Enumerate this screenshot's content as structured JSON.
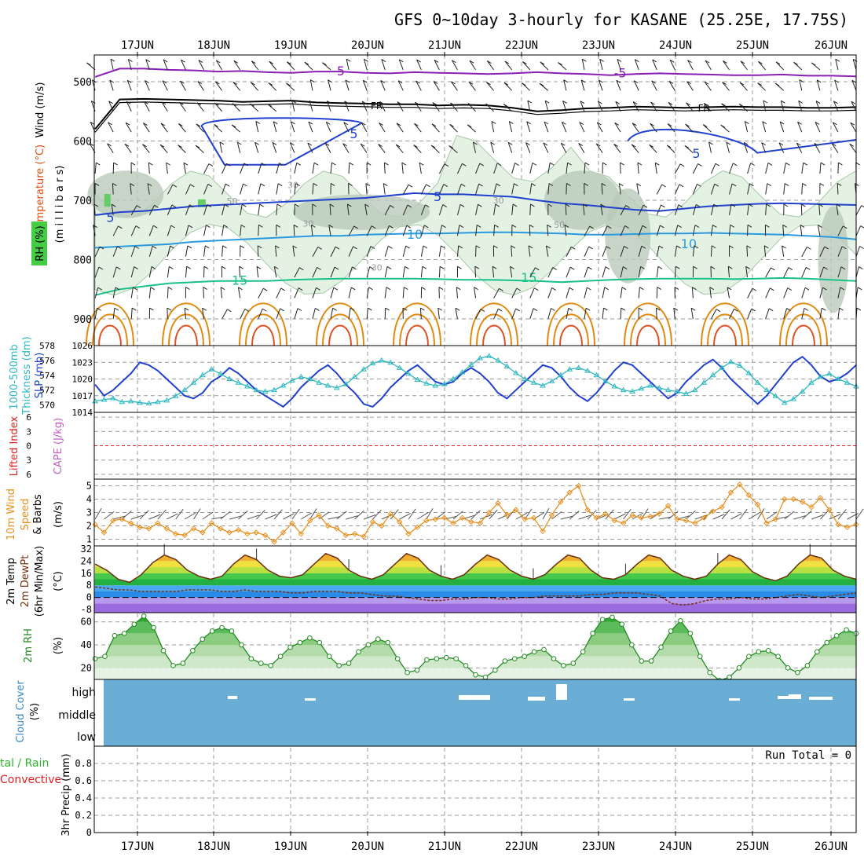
{
  "title": "GFS 0~10day 3-hourly for KASANE (25.25E, 17.75S)",
  "dates": [
    "17JUN",
    "18JUN",
    "19JUN",
    "20JUN",
    "21JUN",
    "22JUN",
    "23JUN",
    "24JUN",
    "25JUN",
    "26JUN"
  ],
  "colors": {
    "grid": "#9a9a9a",
    "rh_fill": "#e4f2e4",
    "rh_dark": "#b9c9b9",
    "temp_purple": "#8a1fb5",
    "temp_blue": "#2040d0",
    "temp_cyan": "#2a9ae0",
    "temp_green": "#18c08a",
    "temp_orange": "#e08a10",
    "fr_black": "#000000",
    "slp": "#2040d0",
    "thick": "#2fb8c0",
    "lifted": "#e02020",
    "cape": "#c060c0",
    "wind10": "#e89020",
    "dewpt": "#7a3010",
    "rh2m": "#228b22",
    "cloud": "#6aaed6"
  },
  "chart_data": [
    {
      "type": "line",
      "title": "Wind (m/s)  Temperature (°C)  RH (%)",
      "ylabel": "(millibars)",
      "yticks": [
        500,
        600,
        700,
        800,
        900
      ],
      "contour_labels": [
        "-5",
        "-5",
        "FR",
        "FR",
        "5",
        "5",
        "5",
        "5",
        "10",
        "10",
        "15",
        "15",
        "30",
        "30",
        "30",
        "30",
        "50",
        "50"
      ],
      "series": [
        {
          "name": "-5",
          "color": "purple",
          "values": [
            492,
            478,
            478,
            480,
            481,
            483,
            482,
            484,
            485,
            483,
            483,
            485,
            486,
            484,
            485,
            486,
            487,
            486,
            484,
            486,
            487,
            489,
            487,
            486,
            487,
            488,
            489,
            489,
            488,
            490,
            490,
            491
          ]
        },
        {
          "name": "FR",
          "color": "black",
          "values": [
            580,
            530,
            529,
            530,
            531,
            532,
            534,
            533,
            532,
            535,
            536,
            537,
            538,
            538,
            540,
            539,
            540,
            544,
            550,
            548,
            545,
            544,
            542,
            543,
            544,
            543,
            542,
            543,
            543,
            544,
            544,
            543
          ]
        },
        {
          "name": "5",
          "color": "blue",
          "values": [
            725,
            720,
            718,
            714,
            710,
            708,
            706,
            704,
            702,
            700,
            698,
            696,
            692,
            688,
            690,
            690,
            692,
            694,
            700,
            705,
            708,
            712,
            716,
            718,
            714,
            710,
            708,
            706,
            705,
            706,
            707,
            708
          ]
        },
        {
          "name": "10",
          "color": "cyan",
          "values": [
            780,
            778,
            776,
            774,
            770,
            768,
            766,
            764,
            762,
            760,
            760,
            758,
            757,
            756,
            756,
            755,
            754,
            754,
            755,
            756,
            758,
            758,
            757,
            756,
            756,
            755,
            756,
            757,
            758,
            760,
            762,
            766
          ]
        },
        {
          "name": "15",
          "color": "green",
          "values": [
            860,
            850,
            845,
            840,
            838,
            836,
            836,
            836,
            834,
            833,
            832,
            832,
            832,
            832,
            833,
            834,
            834,
            835,
            836,
            838,
            836,
            834,
            833,
            832,
            832,
            832,
            833,
            832,
            831,
            832,
            834,
            836
          ]
        }
      ]
    },
    {
      "type": "line",
      "ylabel": "SLP (mb) / 1000-500mb Thickness (dm)",
      "ylim_slp": [
        1014,
        1026
      ],
      "ylim_thick": [
        569,
        578
      ],
      "yticks_left": [
        578,
        576,
        574,
        572,
        570
      ],
      "yticks_right": [
        1026,
        1023,
        1020,
        1017,
        1014
      ],
      "series": [
        {
          "name": "SLP (mb)",
          "values": [
            1019,
            1017,
            1018,
            1019.5,
            1021,
            1023,
            1022.5,
            1021.5,
            1020,
            1018.5,
            1017,
            1016.5,
            1017.5,
            1019.5,
            1020.5,
            1022,
            1021,
            1019.5,
            1018,
            1017,
            1016,
            1015,
            1016.5,
            1018.5,
            1020,
            1021.5,
            1022.5,
            1021,
            1019,
            1017.5,
            1015.5,
            1015,
            1016.5,
            1018.5,
            1020,
            1021.5,
            1022.5,
            1021,
            1019.5,
            1019,
            1019.5,
            1021,
            1022,
            1021,
            1019.5,
            1017.5,
            1016.5,
            1018,
            1019.5,
            1021,
            1022.5,
            1022,
            1020.5,
            1018.5,
            1017,
            1016,
            1017.5,
            1019.5,
            1021.5,
            1023,
            1022.5,
            1021,
            1019.5,
            1018,
            1016.5,
            1017.5,
            1019.5,
            1021,
            1022.5,
            1023.5,
            1022,
            1020,
            1018.5,
            1017,
            1015.5,
            1017,
            1019,
            1021,
            1023,
            1024,
            1022.5,
            1020.5,
            1019.5,
            1020,
            1021,
            1022.5
          ]
        },
        {
          "name": "Thickness (dm)",
          "values": [
            570.5,
            570.7,
            570.9,
            570.4,
            570.5,
            570.3,
            570.2,
            570.4,
            570.6,
            571.2,
            572,
            573,
            574,
            574.8,
            574.2,
            573.5,
            573,
            572.5,
            572,
            571.8,
            572,
            572.6,
            573.3,
            573.8,
            573.5,
            573,
            572.6,
            572.3,
            572.8,
            573.8,
            574.8,
            575.6,
            576,
            575.7,
            575,
            574.2,
            573.4,
            572.9,
            572.6,
            572.8,
            573.5,
            574.4,
            575.4,
            576.3,
            576.6,
            576,
            575.2,
            574.3,
            573.5,
            573,
            572.6,
            573.2,
            574,
            574.8,
            575,
            574.6,
            574,
            573.2,
            572.5,
            572,
            571.8,
            572.2,
            572.6,
            572.3,
            572,
            571.8,
            571.5,
            572,
            573,
            574,
            575,
            575.8,
            575.3,
            574.3,
            573,
            572,
            571.2,
            570.3,
            570.8,
            571.8,
            573,
            573.8,
            574.2,
            573.5,
            573,
            572.5
          ]
        }
      ]
    },
    {
      "type": "line",
      "ylabel": "Lifted Index / CAPE (J/kg)",
      "yticks": [
        6,
        3,
        0,
        -3,
        -6
      ],
      "yticks_label": [
        "6",
        "3",
        "0",
        "3",
        "6"
      ],
      "series": [
        {
          "name": "Lifted Index",
          "values": [
            0
          ]
        }
      ]
    },
    {
      "type": "line",
      "ylabel": "10m Wind Speed & Barbs (m/s)",
      "ylim": [
        0.5,
        5.5
      ],
      "yticks": [
        5,
        4,
        3,
        2,
        1
      ],
      "series": [
        {
          "name": "Speed",
          "values": [
            2.1,
            1.5,
            2.4,
            2.5,
            2.2,
            1.9,
            1.8,
            2.2,
            1.8,
            1.4,
            1.3,
            1.8,
            1.5,
            2.2,
            1.8,
            1.5,
            1.7,
            1.4,
            1.5,
            1.3,
            0.8,
            1.5,
            2.2,
            1.4,
            2.4,
            2.8,
            2.0,
            1.8,
            1.3,
            1.4,
            1.2,
            2.3,
            2.0,
            2.9,
            2.3,
            1.4,
            1.9,
            2.4,
            2.5,
            2.6,
            2.2,
            2.6,
            2.3,
            2.2,
            3.0,
            3.7,
            2.8,
            3.2,
            2.5,
            2.6,
            1.6,
            2.8,
            3.8,
            4.5,
            5.0,
            3.2,
            2.6,
            2.9,
            2.4,
            2.2,
            2.8,
            2.6,
            2.7,
            2.9,
            3.5,
            2.5,
            2.4,
            2.2,
            2.6,
            3.1,
            3.4,
            4.5,
            5.1,
            4.3,
            3.6,
            2.2,
            2.5,
            4.0,
            4.0,
            3.8,
            3.4,
            4.1,
            3.2,
            2.1,
            1.9,
            2.1
          ]
        }
      ]
    },
    {
      "type": "area",
      "ylabel": "2m Temp / 2m DewPt / (6hr Min/Max) (°C)",
      "ylim": [
        -10,
        34
      ],
      "yticks": [
        32,
        24,
        16,
        8,
        0,
        -8
      ],
      "series": [
        {
          "name": "2m Temp",
          "values": [
            22,
            18,
            12,
            10,
            15,
            23,
            28,
            25,
            18,
            14,
            12,
            14,
            22,
            28,
            25,
            18,
            14,
            13,
            15,
            22,
            29,
            26,
            18,
            14,
            12,
            15,
            22,
            29,
            26,
            18,
            14,
            12,
            15,
            22,
            28,
            25,
            18,
            14,
            12,
            15,
            22,
            28,
            26,
            18,
            13,
            12,
            15,
            22,
            28,
            26,
            18,
            14,
            12,
            14,
            22,
            28,
            25,
            17,
            13,
            11,
            14,
            22,
            28,
            26,
            18,
            14,
            12
          ]
        },
        {
          "name": "2m DewPt",
          "values": [
            7,
            6,
            5,
            5,
            4,
            4,
            4,
            4,
            5,
            5,
            5,
            4,
            4,
            5,
            4,
            4,
            4,
            3,
            3,
            4,
            4,
            4,
            3,
            3,
            2,
            1,
            1,
            0,
            -1,
            -2,
            -2,
            -1,
            -1,
            0,
            0,
            -1,
            -1,
            0,
            0,
            1,
            1,
            1,
            1,
            2,
            2,
            3,
            3,
            3,
            2,
            1,
            -4,
            -5,
            -4,
            -2,
            -1,
            -1,
            0,
            -1,
            -1,
            0,
            1,
            2,
            1,
            0,
            1,
            2,
            3
          ]
        }
      ]
    },
    {
      "type": "area",
      "ylabel": "2m RH (%)",
      "ylim": [
        10,
        68
      ],
      "yticks": [
        60,
        40,
        20
      ],
      "series": [
        {
          "name": "2m RH",
          "values": [
            28,
            30,
            48,
            50,
            58,
            65,
            55,
            35,
            22,
            24,
            35,
            45,
            52,
            55,
            52,
            40,
            28,
            24,
            22,
            30,
            38,
            42,
            46,
            42,
            30,
            22,
            24,
            34,
            40,
            45,
            42,
            28,
            16,
            18,
            27,
            28,
            29,
            28,
            22,
            14,
            12,
            18,
            26,
            28,
            30,
            34,
            36,
            28,
            22,
            24,
            34,
            50,
            62,
            64,
            58,
            40,
            26,
            26,
            38,
            52,
            61,
            50,
            30,
            16,
            9,
            12,
            20,
            30,
            34,
            35,
            30,
            20,
            16,
            22,
            34,
            42,
            48,
            53,
            50
          ]
        }
      ]
    },
    {
      "type": "bar",
      "ylabel": "Cloud Cover (%)",
      "yticks_label": [
        "high",
        "middle",
        "low"
      ]
    },
    {
      "type": "bar",
      "ylabel": "3hr Precip (mm)",
      "legend": [
        "Total / Rain",
        "Convective"
      ],
      "ylim": [
        0,
        1
      ],
      "yticks": [
        0.8,
        0.6,
        0.4,
        0.2,
        0
      ],
      "annotation": "Run Total = 0"
    }
  ],
  "labels": {
    "p1_wind": "Wind (m/s)",
    "p1_temp": "Temperature (°C)",
    "p1_rh": "RH (%)",
    "p1_mb": "(m i l l i b a r s)",
    "p2_thick": "1000-500mb",
    "p2_thick2": "Thickness (dm)",
    "p2_slp": "SLP (mb)",
    "p3_li": "Lifted Index",
    "p3_cape": "CAPE (J/kg)",
    "p4_a": "10m Wind",
    "p4_b": "Speed",
    "p4_c": "& Barbs",
    "p4_unit": "(m/s)",
    "p5_a": "2m Temp",
    "p5_b": "2m DewPt",
    "p5_c": "(6hr Min/Max)",
    "p5_unit": "(°C)",
    "p6_a": "2m RH",
    "p6_unit": "(%)",
    "p7_a": "Cloud Cover",
    "p7_unit": "(%)",
    "p7_high": "high",
    "p7_mid": "middle",
    "p7_low": "low",
    "p8_a": "3hr Precip (mm)",
    "p8_total": "tal / Rain",
    "p8_conv": "Convective",
    "run_total": "Run Total = 0"
  }
}
